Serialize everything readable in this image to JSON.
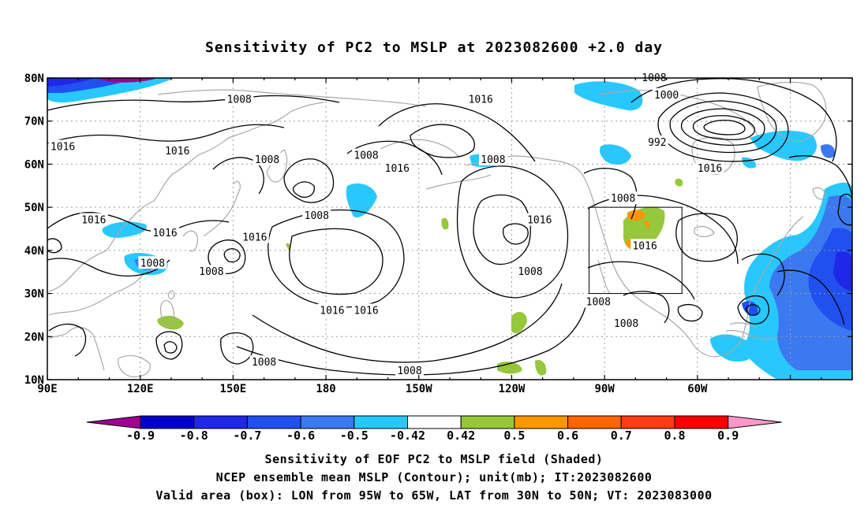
{
  "title": "Sensitivity of PC2 to MSLP at 2023082600 +2.0 day",
  "map": {
    "lat_labels": [
      "80N",
      "70N",
      "60N",
      "50N",
      "40N",
      "30N",
      "20N",
      "10N"
    ],
    "lon_labels": [
      "90E",
      "120E",
      "150E",
      "180",
      "150W",
      "120W",
      "90W",
      "60W"
    ],
    "valid_box": {
      "lon_min": -95,
      "lon_max": -65,
      "lat_min": 30,
      "lat_max": 50
    },
    "contour_labels": [
      {
        "text": "1008",
        "lon": 152,
        "lat": 75
      },
      {
        "text": "1016",
        "lon": 95,
        "lat": 64
      },
      {
        "text": "1016",
        "lon": 132,
        "lat": 63
      },
      {
        "text": "1008",
        "lon": 161,
        "lat": 61
      },
      {
        "text": "1016",
        "lon": 105,
        "lat": 47
      },
      {
        "text": "1016",
        "lon": 128,
        "lat": 44
      },
      {
        "text": "1016",
        "lon": 157,
        "lat": 43
      },
      {
        "text": "1008",
        "lon": 177,
        "lat": 48
      },
      {
        "text": "1008",
        "lon": 124,
        "lat": 37
      },
      {
        "text": "1008",
        "lon": 143,
        "lat": 35
      },
      {
        "text": "1008",
        "lon": 160,
        "lat": 14
      },
      {
        "text": "1016",
        "lon": -178,
        "lat": 26
      },
      {
        "text": "1016",
        "lon": -167,
        "lat": 26
      },
      {
        "text": "1008",
        "lon": -167,
        "lat": 62
      },
      {
        "text": "1016",
        "lon": -157,
        "lat": 59
      },
      {
        "text": "1008",
        "lon": -126,
        "lat": 61
      },
      {
        "text": "1016",
        "lon": -130,
        "lat": 75
      },
      {
        "text": "1016",
        "lon": -111,
        "lat": 47
      },
      {
        "text": "1008",
        "lon": -114,
        "lat": 35
      },
      {
        "text": "1008",
        "lon": -92,
        "lat": 28
      },
      {
        "text": "1008",
        "lon": -83,
        "lat": 23
      },
      {
        "text": "1016",
        "lon": -77,
        "lat": 41
      },
      {
        "text": "1008",
        "lon": -84,
        "lat": 52
      },
      {
        "text": "1008",
        "lon": -153,
        "lat": 12
      },
      {
        "text": "1008",
        "lon": -74,
        "lat": 80
      },
      {
        "text": "1000",
        "lon": -70,
        "lat": 76
      },
      {
        "text": "992",
        "lon": -73,
        "lat": 65
      },
      {
        "text": "1016",
        "lon": -56,
        "lat": 59
      }
    ]
  },
  "colorbar": {
    "labels": [
      "-0.9",
      "-0.8",
      "-0.7",
      "-0.6",
      "-0.5",
      "-0.42",
      "0.42",
      "0.5",
      "0.6",
      "0.7",
      "0.8",
      "0.9"
    ],
    "colors": [
      "#a00090",
      "#0000c8",
      "#1e28e6",
      "#2050f0",
      "#3c78f0",
      "#28c8ff",
      "#ffffff",
      "#96c83c",
      "#ff9600",
      "#ff6400",
      "#ff3c14",
      "#ff0000",
      "#ff96c8"
    ]
  },
  "footer": {
    "line1": "Sensitivity of EOF PC2 to MSLP field (Shaded)",
    "line2": "NCEP ensemble mean MSLP (Contour); unit(mb); IT:2023082600",
    "line3": "Valid area (box): LON from 95W to 65W, LAT from 30N to 50N; VT: 2023083000"
  }
}
